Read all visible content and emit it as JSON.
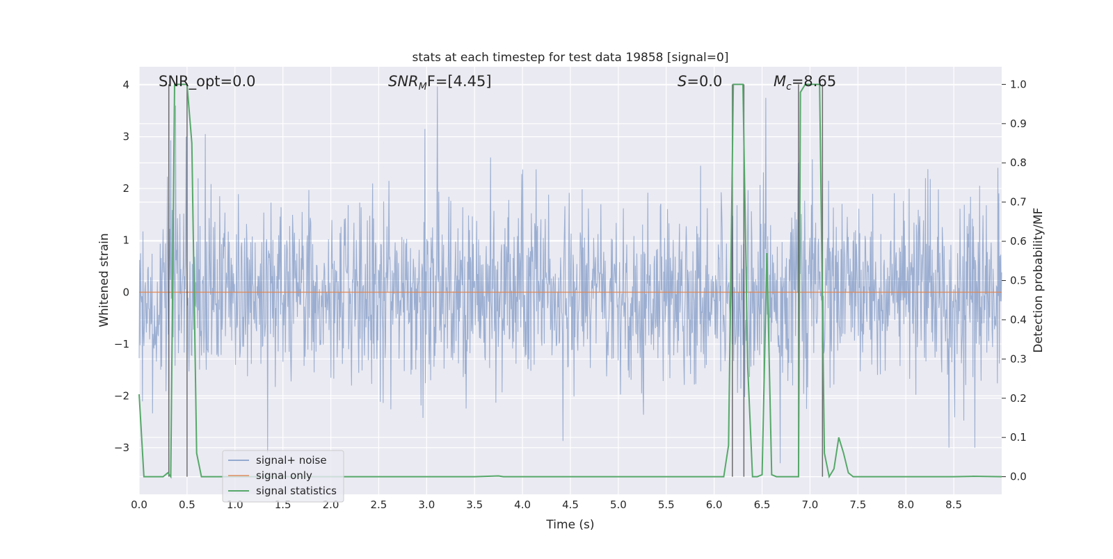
{
  "chart_data": {
    "type": "line",
    "title": "stats at each timestep for test data 19858 [signal=0]",
    "xlabel": "Time (s)",
    "ylabel_left": "Whitened strain",
    "ylabel_right": "Detection probability/MF",
    "xlim": [
      0.0,
      9.0
    ],
    "ylim_left": [
      -3.9,
      4.35
    ],
    "ylim_right": [
      -0.045,
      1.045
    ],
    "xticks": [
      "0.0",
      "0.5",
      "1.0",
      "1.5",
      "2.0",
      "2.5",
      "3.0",
      "3.5",
      "4.0",
      "4.5",
      "5.0",
      "5.5",
      "6.0",
      "6.5",
      "7.0",
      "7.5",
      "8.0",
      "8.5"
    ],
    "yticks_left": [
      "4",
      "3",
      "2",
      "1",
      "0",
      "−1",
      "−2",
      "−3"
    ],
    "yticks_right": [
      "1.0",
      "0.9",
      "0.8",
      "0.7",
      "0.6",
      "0.5",
      "0.4",
      "0.3",
      "0.2",
      "0.1",
      "0.0"
    ],
    "grid": true,
    "background": "#eaeaf2",
    "annotations": {
      "snr_opt": "SNR_opt=0.0",
      "snr_mf_prefix": "SNR",
      "snr_mf_sub": "M",
      "snr_mf_suffix": "F=[4.45]",
      "s_label": "S",
      "s_value": "=0.0",
      "mc_label": "M",
      "mc_sub": "c",
      "mc_value": "=8.65"
    },
    "vertical_lines_x": [
      0.31,
      0.5,
      6.19,
      6.31,
      6.88,
      7.13
    ],
    "series": [
      {
        "name": "signal+ noise",
        "color": "#4c72b0",
        "description_range": "noise approx ±2.5, peaks up to 4.0 near t=3.1",
        "peaks": [
          [
            0.33,
            2.93
          ],
          [
            0.38,
            3.6
          ],
          [
            0.49,
            3.0
          ],
          [
            0.69,
            3.05
          ],
          [
            1.34,
            -3.1
          ],
          [
            2.98,
            3.15
          ],
          [
            3.11,
            3.97
          ],
          [
            4.42,
            -2.87
          ],
          [
            6.54,
            3.75
          ],
          [
            6.69,
            -3.3
          ],
          [
            6.88,
            2.5
          ],
          [
            8.45,
            -3.0
          ],
          [
            8.72,
            -3.0
          ]
        ]
      },
      {
        "name": "signal only",
        "color": "#dd8452",
        "y": 0.0
      },
      {
        "name": "signal statistics",
        "color": "#55a868",
        "x": [
          0.0,
          0.05,
          0.1,
          0.15,
          0.2,
          0.25,
          0.3,
          0.33,
          0.37,
          0.4,
          0.45,
          0.5,
          0.55,
          0.6,
          0.65,
          0.7,
          0.8,
          1.0,
          1.5,
          2.0,
          2.5,
          3.0,
          3.5,
          3.75,
          3.8,
          4.0,
          4.5,
          5.0,
          5.5,
          6.0,
          6.1,
          6.15,
          6.2,
          6.25,
          6.3,
          6.35,
          6.4,
          6.45,
          6.5,
          6.55,
          6.6,
          6.65,
          6.7,
          6.75,
          6.8,
          6.85,
          6.88,
          6.9,
          6.95,
          7.0,
          7.05,
          7.1,
          7.15,
          7.2,
          7.25,
          7.3,
          7.35,
          7.4,
          7.45,
          7.5,
          7.55,
          7.6,
          7.65,
          7.7,
          8.0,
          8.5,
          8.7,
          9.0
        ],
        "y": [
          0.21,
          0.0,
          0.0,
          0.0,
          0.0,
          0.0,
          0.01,
          0.0,
          1.0,
          1.0,
          1.0,
          1.0,
          0.85,
          0.06,
          0.0,
          0.0,
          0.0,
          0.0,
          0.0,
          0.0,
          0.0,
          0.0,
          0.0,
          0.002,
          0.0,
          0.0,
          0.0,
          0.0,
          0.0,
          0.0,
          0.0,
          0.08,
          1.0,
          1.0,
          1.0,
          0.28,
          0.0,
          0.0,
          0.005,
          0.57,
          0.005,
          0.0,
          0.0,
          0.0,
          0.0,
          0.0,
          0.0,
          0.98,
          1.0,
          1.0,
          1.0,
          1.0,
          0.06,
          0.0,
          0.02,
          0.1,
          0.06,
          0.01,
          0.0,
          0.0,
          0.0,
          0.0,
          0.0,
          0.0,
          0.0,
          0.0,
          0.001,
          0.0
        ]
      }
    ],
    "legend": {
      "location": "lower-left",
      "entries": [
        "signal+ noise",
        "signal only",
        "signal statistics"
      ]
    }
  }
}
